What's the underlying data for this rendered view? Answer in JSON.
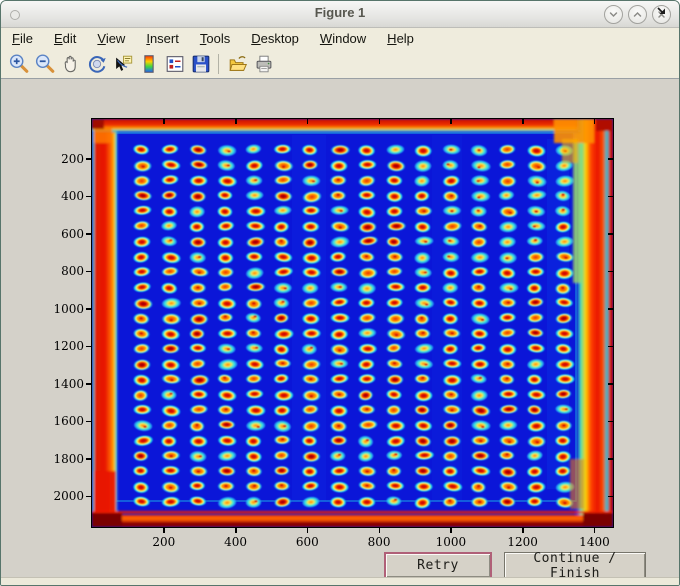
{
  "window": {
    "title": "Figure 1",
    "controls": [
      {
        "name": "minimize",
        "glyph": "chevron-down"
      },
      {
        "name": "maximize",
        "glyph": "chevron-up"
      },
      {
        "name": "close",
        "glyph": "x"
      }
    ]
  },
  "menu": {
    "items": [
      {
        "label": "File"
      },
      {
        "label": "Edit"
      },
      {
        "label": "View"
      },
      {
        "label": "Insert"
      },
      {
        "label": "Tools"
      },
      {
        "label": "Desktop"
      },
      {
        "label": "Window"
      },
      {
        "label": "Help"
      }
    ],
    "dock_icon": "dock-figure-arrow"
  },
  "toolbar": {
    "buttons": [
      "zoom-in",
      "zoom-out",
      "pan",
      "rotate-3d",
      "data-cursor",
      "insert-colorbar",
      "insert-legend",
      "save-figure",
      "open-file",
      "print-figure"
    ]
  },
  "chart_data": {
    "type": "heatmap",
    "title": "",
    "xlabel": "",
    "ylabel": "",
    "colormap": "jet",
    "description": "Jet-colormap intensity image of a scanned 384-spot microplate (16 columns x 24 rows). Spots have red/orange centers, yellow rings and cyan halos on a deep blue background; plate edges saturate to red, corners dark maroon.",
    "grid": {
      "rows": 24,
      "cols": 16
    },
    "x_range": [
      1,
      1451
    ],
    "y_range": [
      1,
      2165
    ],
    "x_ticks": [
      200,
      400,
      600,
      800,
      1000,
      1200,
      1400
    ],
    "y_ticks": [
      200,
      400,
      600,
      800,
      1000,
      1200,
      1400,
      1600,
      1800,
      2000
    ],
    "palette": {
      "background_blue": "#0b16d8",
      "halo_cyan": "#28dcec",
      "ring_yellow": "#ffd800",
      "spot_orange": "#ff8800",
      "spot_red": "#d81000",
      "edge_red": "#e81400",
      "corner_maroon": "#7a0000"
    }
  },
  "action_buttons": {
    "retry": "Retry",
    "continue": "Continue / Finish"
  },
  "ui_colors": {
    "titlebar_text": "#57574f",
    "menubar_bg": "#efecdd",
    "canvas_bg": "#d4d1c9",
    "retry_focus_border": "#b06078"
  }
}
